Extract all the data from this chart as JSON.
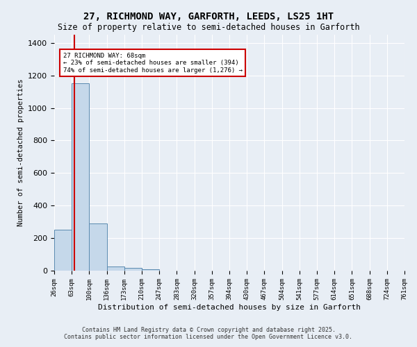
{
  "title": "27, RICHMOND WAY, GARFORTH, LEEDS, LS25 1HT",
  "subtitle": "Size of property relative to semi-detached houses in Garforth",
  "xlabel": "Distribution of semi-detached houses by size in Garforth",
  "ylabel": "Number of semi-detached properties",
  "bin_labels": [
    "26sqm",
    "63sqm",
    "100sqm",
    "136sqm",
    "173sqm",
    "210sqm",
    "247sqm",
    "283sqm",
    "320sqm",
    "357sqm",
    "394sqm",
    "430sqm",
    "467sqm",
    "504sqm",
    "541sqm",
    "577sqm",
    "614sqm",
    "651sqm",
    "688sqm",
    "724sqm",
    "761sqm"
  ],
  "bar_values": [
    250,
    1150,
    290,
    25,
    15,
    10,
    0,
    0,
    0,
    0,
    0,
    0,
    0,
    0,
    0,
    0,
    0,
    0,
    0,
    0
  ],
  "bar_color": "#c5d8ea",
  "bar_edge_color": "#5a8ab0",
  "property_line_x": 1.14,
  "property_line_color": "#cc0000",
  "annotation_text": "27 RICHMOND WAY: 68sqm\n← 23% of semi-detached houses are smaller (394)\n74% of semi-detached houses are larger (1,276) →",
  "annotation_box_color": "#ffffff",
  "annotation_box_edge": "#cc0000",
  "ylim": [
    0,
    1450
  ],
  "xlim": [
    0,
    20
  ],
  "background_color": "#e8eef5",
  "grid_color": "#ffffff",
  "footer_line1": "Contains HM Land Registry data © Crown copyright and database right 2025.",
  "footer_line2": "Contains public sector information licensed under the Open Government Licence v3.0."
}
